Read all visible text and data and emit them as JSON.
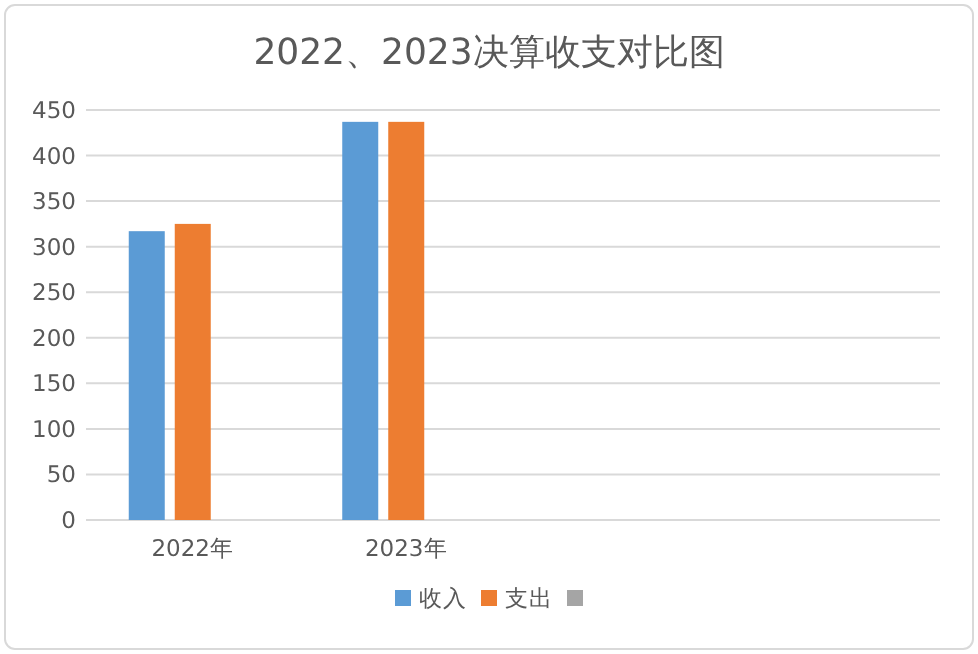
{
  "chart_data": {
    "type": "bar",
    "title": "2022、2023决算收支对比图",
    "categories": [
      "2022年",
      "2023年",
      null,
      null
    ],
    "series": [
      {
        "name": "收入",
        "color": "#5b9bd5",
        "values": [
          317,
          437,
          null,
          null
        ]
      },
      {
        "name": "支出",
        "color": "#ed7d31",
        "values": [
          325,
          437,
          null,
          null
        ]
      },
      {
        "color": "#a5a5a5",
        "values": [
          null,
          null,
          null,
          null
        ]
      }
    ],
    "ylim": [
      0,
      450
    ],
    "yticks": [
      0,
      50,
      100,
      150,
      200,
      250,
      300,
      350,
      400,
      450
    ],
    "grid": "y",
    "legend": "bottom"
  }
}
